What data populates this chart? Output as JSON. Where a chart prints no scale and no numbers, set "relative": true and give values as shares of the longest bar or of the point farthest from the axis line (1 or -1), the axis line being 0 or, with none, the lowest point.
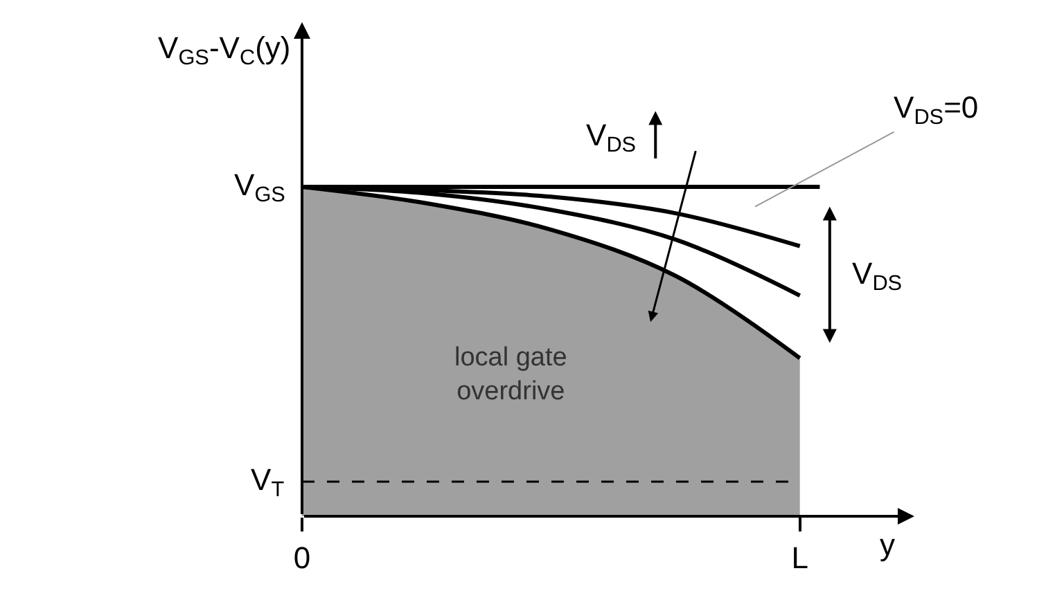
{
  "chart_data": {
    "type": "line",
    "relative": true,
    "marker": "none",
    "xlabel": "y",
    "ylabel": "V$_{GS}$-V$_{C}$(y)",
    "categories": [
      "0",
      null,
      null,
      null,
      "L"
    ],
    "series": [
      {
        "type": "area",
        "color": "#a0a0a0",
        "values": [
          1,
          0.95,
          0.87,
          0.73,
          0.48
        ]
      },
      {
        "color": "#000000",
        "values": [
          1,
          0.98,
          0.93,
          0.84,
          0.67
        ]
      },
      {
        "color": "#000000",
        "values": [
          1,
          0.99,
          0.97,
          0.92,
          0.82
        ]
      }
    ],
    "ref_lines": [
      {
        "axis": "y",
        "value": 1,
        "label": "V$_{GS}$",
        "color": "#000000",
        "line_style": "solid"
      },
      {
        "axis": "y",
        "value": 0.105,
        "label": "V$_{T}$",
        "color": "#000000",
        "line_style": "dashed"
      }
    ],
    "annotations": [
      "V$_{DS}$=0",
      "V$_{DS}$",
      "local gate\noverdrive",
      "V$_{DS}$"
    ]
  }
}
